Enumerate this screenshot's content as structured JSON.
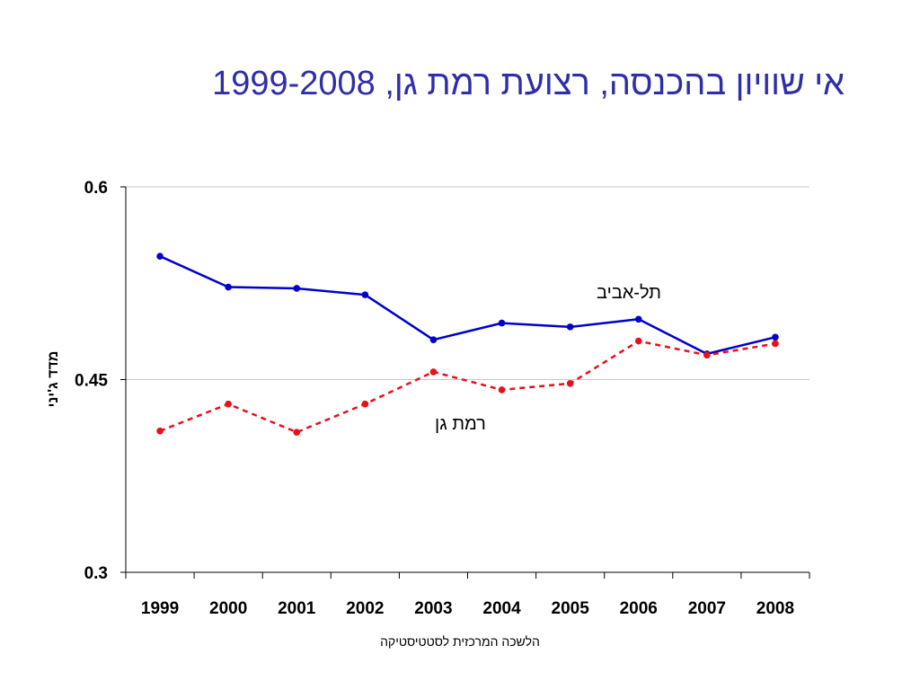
{
  "slide": {
    "title": "אי שוויון בהכנסה, רצועת רמת גן, 1999-2008",
    "source": "הלשכה המרכזית לסטטיסטיקה"
  },
  "chart_data": {
    "type": "line",
    "title": "אי שוויון בהכנסה, רצועת רמת גן, 1999-2008",
    "xlabel": "",
    "ylabel": "מדד ג'יני",
    "categories": [
      "1999",
      "2000",
      "2001",
      "2002",
      "2003",
      "2004",
      "2005",
      "2006",
      "2007",
      "2008"
    ],
    "ylim": [
      0.3,
      0.6
    ],
    "yticks": [
      "0.3",
      "0.45",
      "0.6"
    ],
    "grid": true,
    "series": [
      {
        "name": "תל-אביב",
        "values": [
          0.546,
          0.522,
          0.521,
          0.516,
          0.481,
          0.494,
          0.491,
          0.497,
          0.47,
          0.483
        ],
        "color": "#0000cc",
        "style": "solid"
      },
      {
        "name": "רמת גן",
        "values": [
          0.41,
          0.431,
          0.409,
          0.431,
          0.456,
          0.442,
          0.447,
          0.48,
          0.469,
          0.478
        ],
        "color": "#e8101a",
        "style": "dashed"
      }
    ]
  }
}
